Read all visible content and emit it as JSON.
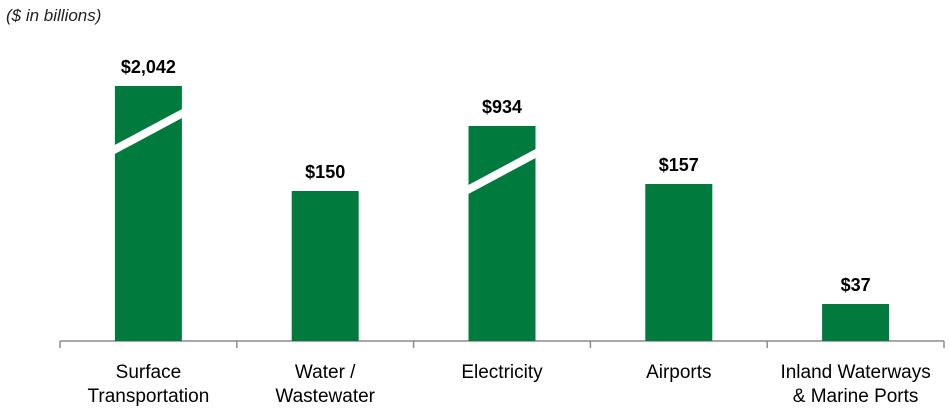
{
  "chart_data": {
    "type": "bar",
    "units_note": "($ in billions)",
    "categories": [
      [
        "Surface",
        "Transportation"
      ],
      [
        "Water /",
        "Wastewater"
      ],
      [
        "Electricity"
      ],
      [
        "Airports"
      ],
      [
        "Inland Waterways",
        "& Marine Ports"
      ]
    ],
    "values": [
      2042,
      150,
      934,
      157,
      37
    ],
    "value_labels": [
      "$2,042",
      "$150",
      "$934",
      "$157",
      "$37"
    ],
    "broken_axis_bars": [
      0,
      2
    ],
    "bar_color": "#017A3E",
    "axis_color": "#8c8c8c",
    "label_color": "#000000",
    "ylabel": "",
    "xlabel": "",
    "grid": false
  }
}
